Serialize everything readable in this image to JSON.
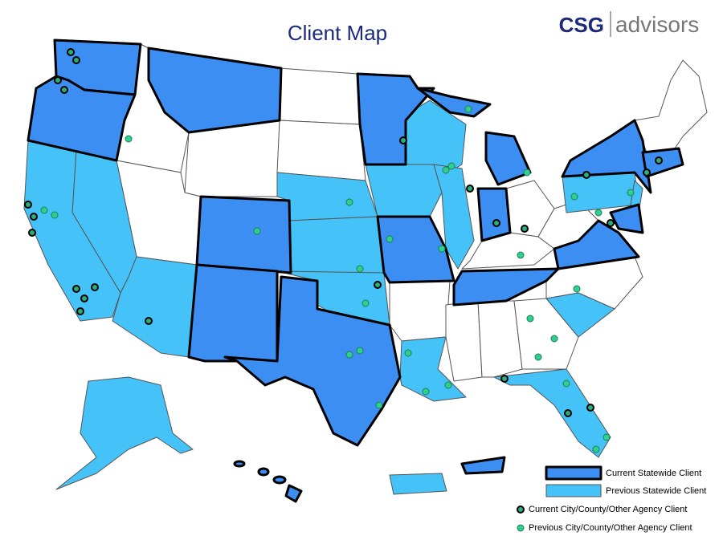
{
  "header": {
    "title": "Client Map",
    "logo": {
      "brand": "CSG",
      "tagline": "advisors"
    }
  },
  "legend": {
    "items": [
      {
        "label": "Current Statewide Client"
      },
      {
        "label": "Previous Statewide Client"
      },
      {
        "label": "Current City/County/Other Agency Client"
      },
      {
        "label": "Previous City/County/Other Agency Client"
      }
    ]
  }
}
